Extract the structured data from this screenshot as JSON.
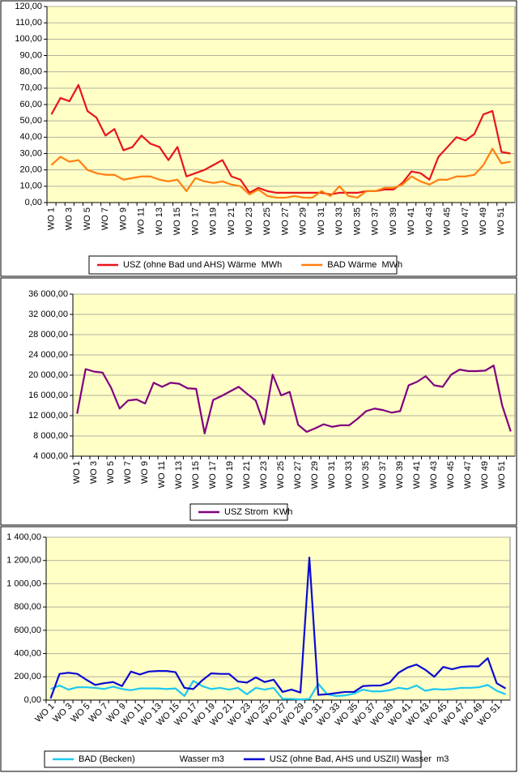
{
  "chart_data": [
    {
      "type": "line",
      "categories": [
        "WO 1",
        null,
        "WO 3",
        null,
        "WO 5",
        null,
        "WO 7",
        null,
        "WO 9",
        null,
        "WO 11",
        null,
        "WO 13",
        null,
        "WO 15",
        null,
        "WO 17",
        null,
        "WO 19",
        null,
        "WO 21",
        null,
        "WO 23",
        null,
        "WO 25",
        null,
        "WO 27",
        null,
        "WO 29",
        null,
        "WO 31",
        null,
        "WO 33",
        null,
        "WO 35",
        null,
        "WO 37",
        null,
        "WO 39",
        null,
        "WO 41",
        null,
        "WO 43",
        null,
        "WO 45",
        null,
        "WO 47",
        null,
        "WO 49",
        null,
        "WO 51",
        null
      ],
      "series": [
        {
          "name": "USZ (ohne Bad und AHS) Wärme  MWh",
          "color": "#e8141c",
          "values": [
            54,
            64,
            62,
            72,
            56,
            52,
            41,
            45,
            32,
            34,
            41,
            36,
            34,
            26,
            34,
            16,
            18,
            20,
            23,
            26,
            16,
            14,
            6,
            9,
            7,
            6,
            6,
            6,
            6,
            6,
            6,
            5,
            6,
            6,
            6,
            7,
            7,
            8,
            8,
            12,
            19,
            18,
            14,
            28,
            34,
            40,
            38,
            42,
            54,
            56,
            31,
            30
          ]
        },
        {
          "name": "BAD Wärme  MWh",
          "color": "#ff7f0e",
          "values": [
            23,
            28,
            25,
            26,
            20,
            18,
            17,
            17,
            14,
            15,
            16,
            16,
            14,
            13,
            14,
            7,
            15,
            13,
            12,
            13,
            11,
            10,
            5,
            8,
            4,
            3,
            3,
            4,
            3,
            3,
            7,
            4,
            10,
            4,
            3,
            7,
            7,
            9,
            9,
            11,
            16,
            13,
            11,
            14,
            14,
            16,
            16,
            17,
            23,
            33,
            24,
            25
          ]
        }
      ],
      "ylim": [
        0,
        120
      ],
      "yticks": [
        {
          "value": 0,
          "label": "0,00"
        },
        {
          "value": 10,
          "label": "10,00"
        },
        {
          "value": 20,
          "label": "20,00"
        },
        {
          "value": 30,
          "label": "30,00"
        },
        {
          "value": 40,
          "label": "40,00"
        },
        {
          "value": 50,
          "label": "50,00"
        },
        {
          "value": 60,
          "label": "60,00"
        },
        {
          "value": 70,
          "label": "70,00"
        },
        {
          "value": 80,
          "label": "80,00"
        },
        {
          "value": 90,
          "label": "90,00"
        },
        {
          "value": 100,
          "label": "100,00"
        },
        {
          "value": 110,
          "label": "110,00"
        },
        {
          "value": 120,
          "label": "120,00"
        }
      ],
      "grid": true,
      "legend": "bottom",
      "plot_background": "#ffffc6"
    },
    {
      "type": "line",
      "categories": [
        "WO 1",
        null,
        "WO 3",
        null,
        "WO 5",
        null,
        "WO 7",
        null,
        "WO 9",
        null,
        "WO 11",
        null,
        "WO 13",
        null,
        "WO 15",
        null,
        "WO 17",
        null,
        "WO 19",
        null,
        "WO 21",
        null,
        "WO 23",
        null,
        "WO 25",
        null,
        "WO 27",
        null,
        "WO 29",
        null,
        "WO 31",
        null,
        "WO 33",
        null,
        "WO 35",
        null,
        "WO 37",
        null,
        "WO 39",
        null,
        "WO 41",
        null,
        "WO 43",
        null,
        "WO 45",
        null,
        "WO 47",
        null,
        "WO 49",
        null,
        "WO 51",
        null
      ],
      "series": [
        {
          "name": "USZ Strom  KWh",
          "color": "#800080",
          "values": [
            12400,
            21200,
            20700,
            20500,
            17500,
            13400,
            15000,
            15200,
            14400,
            18500,
            17700,
            18500,
            18300,
            17400,
            17300,
            8500,
            15100,
            15900,
            16800,
            17700,
            16300,
            15000,
            10300,
            20100,
            16000,
            16700,
            10200,
            8800,
            9500,
            10300,
            9800,
            10100,
            10100,
            11400,
            12900,
            13400,
            13100,
            12600,
            12900,
            18000,
            18700,
            19800,
            18000,
            17700,
            20100,
            21100,
            20800,
            20800,
            20900,
            21900,
            14000,
            8900
          ]
        }
      ],
      "ylim": [
        4000,
        36000
      ],
      "yticks": [
        {
          "value": 4000,
          "label": "4 000,00"
        },
        {
          "value": 8000,
          "label": "8 000,00"
        },
        {
          "value": 12000,
          "label": "12 000,00"
        },
        {
          "value": 16000,
          "label": "16 000,00"
        },
        {
          "value": 20000,
          "label": "20 000,00"
        },
        {
          "value": 24000,
          "label": "24 000,00"
        },
        {
          "value": 28000,
          "label": "28 000,00"
        },
        {
          "value": 32000,
          "label": "32 000,00"
        },
        {
          "value": 36000,
          "label": "36 000,00"
        }
      ],
      "grid": true,
      "legend": "bottom",
      "plot_background": "#ffffc6"
    },
    {
      "type": "line",
      "categories": [
        "WO 1",
        null,
        "WO 3",
        null,
        "WO 5",
        null,
        "WO 7",
        null,
        "WO 9",
        null,
        "WO 11",
        null,
        "WO 13",
        null,
        "WO 15",
        null,
        "WO 17",
        null,
        "WO 19",
        null,
        "WO 21",
        null,
        "WO 23",
        null,
        "WO 25",
        null,
        "WO 27",
        null,
        "WO 29",
        null,
        "WO 31",
        null,
        "WO 33",
        null,
        "WO 35",
        null,
        "WO 37",
        null,
        "WO 39",
        null,
        "WO 41",
        null,
        "WO 43",
        null,
        "WO 45",
        null,
        "WO 47",
        null,
        "WO 49",
        null,
        "WO 51",
        null
      ],
      "series": [
        {
          "name": "BAD (Becken)                  Wasser m3",
          "color": "#1ec8f0",
          "values": [
            95,
            125,
            90,
            110,
            110,
            105,
            95,
            115,
            95,
            85,
            100,
            100,
            100,
            95,
            100,
            35,
            165,
            120,
            95,
            105,
            90,
            105,
            50,
            105,
            90,
            105,
            10,
            10,
            5,
            10,
            140,
            50,
            35,
            40,
            55,
            90,
            75,
            75,
            85,
            105,
            95,
            125,
            80,
            95,
            90,
            95,
            105,
            105,
            110,
            130,
            80,
            50
          ]
        },
        {
          "name": "USZ (ohne Bad, AHS und USZII) Wasser  m3",
          "color": "#0a0ad2",
          "values": [
            15,
            225,
            235,
            225,
            175,
            130,
            145,
            155,
            120,
            245,
            220,
            245,
            250,
            250,
            240,
            105,
            95,
            170,
            230,
            225,
            225,
            160,
            150,
            195,
            155,
            175,
            70,
            90,
            65,
            1225,
            45,
            50,
            60,
            70,
            70,
            120,
            125,
            125,
            150,
            235,
            280,
            305,
            260,
            200,
            285,
            265,
            285,
            290,
            290,
            360,
            145,
            100
          ]
        }
      ],
      "ylim": [
        0,
        1400
      ],
      "yticks": [
        {
          "value": 0,
          "label": "0,00"
        },
        {
          "value": 200,
          "label": "200,00"
        },
        {
          "value": 400,
          "label": "400,00"
        },
        {
          "value": 600,
          "label": "600,00"
        },
        {
          "value": 800,
          "label": "800,00"
        },
        {
          "value": 1000,
          "label": "1 000,00"
        },
        {
          "value": 1200,
          "label": "1 200,00"
        },
        {
          "value": 1400,
          "label": "1 400,00"
        }
      ],
      "grid": true,
      "legend": "bottom",
      "plot_background": "#ffffc6"
    }
  ]
}
